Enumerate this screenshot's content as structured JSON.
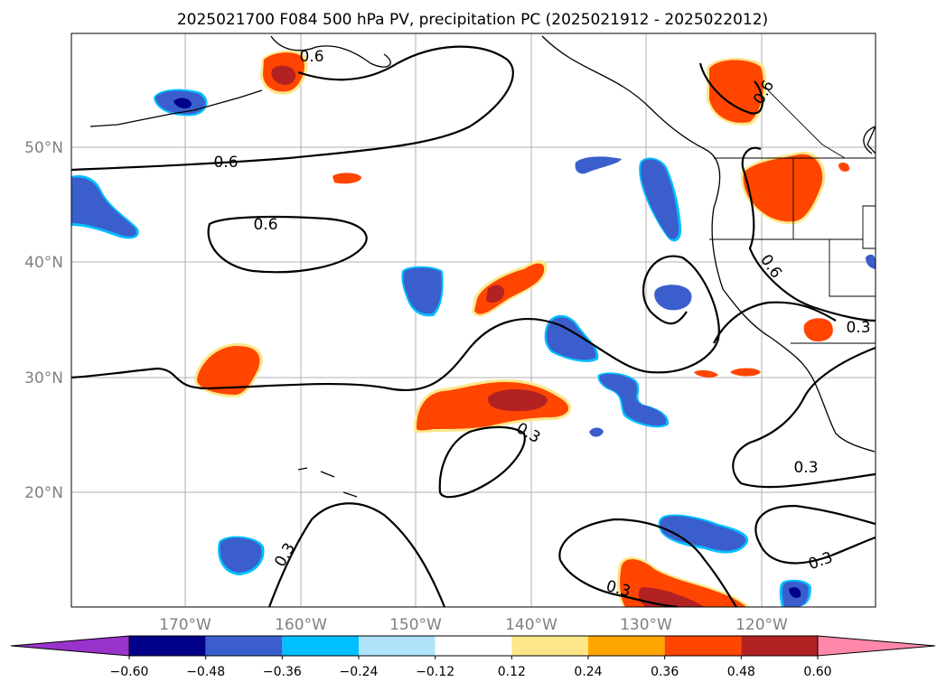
{
  "title": "2025021700 F084 500 hPa PV, precipitation PC (2025021912 - 2025022012)",
  "lat_labels": [
    "50°N",
    "40°N",
    "30°N",
    "20°N"
  ],
  "lon_labels": [
    "170°W",
    "160°W",
    "150°W",
    "140°W",
    "130°W",
    "120°W"
  ],
  "contour_labels": [
    "0.6",
    "0.6",
    "0.6",
    "0.6",
    "0.6",
    "0.3",
    "0.3",
    "0.3",
    "0.3",
    "0.3"
  ],
  "colorbar": {
    "ticks": [
      "−0.60",
      "−0.48",
      "−0.36",
      "−0.24",
      "−0.12",
      "0.12",
      "0.24",
      "0.36",
      "0.48",
      "0.60"
    ],
    "colors": [
      "#9933cc",
      "#000088",
      "#3a5fcd",
      "#00bfff",
      "#aee3fa",
      "#ffffff",
      "#fde68a",
      "#ffa500",
      "#ff4500",
      "#b22222",
      "#ff88aa"
    ]
  },
  "colors": {
    "orange_red": "#ff4500",
    "dark_red": "#b22222",
    "yellow_edge": "#fde68a",
    "blue": "#3a5fcd",
    "navy": "#000088",
    "cyan_edge": "#00bfff"
  }
}
